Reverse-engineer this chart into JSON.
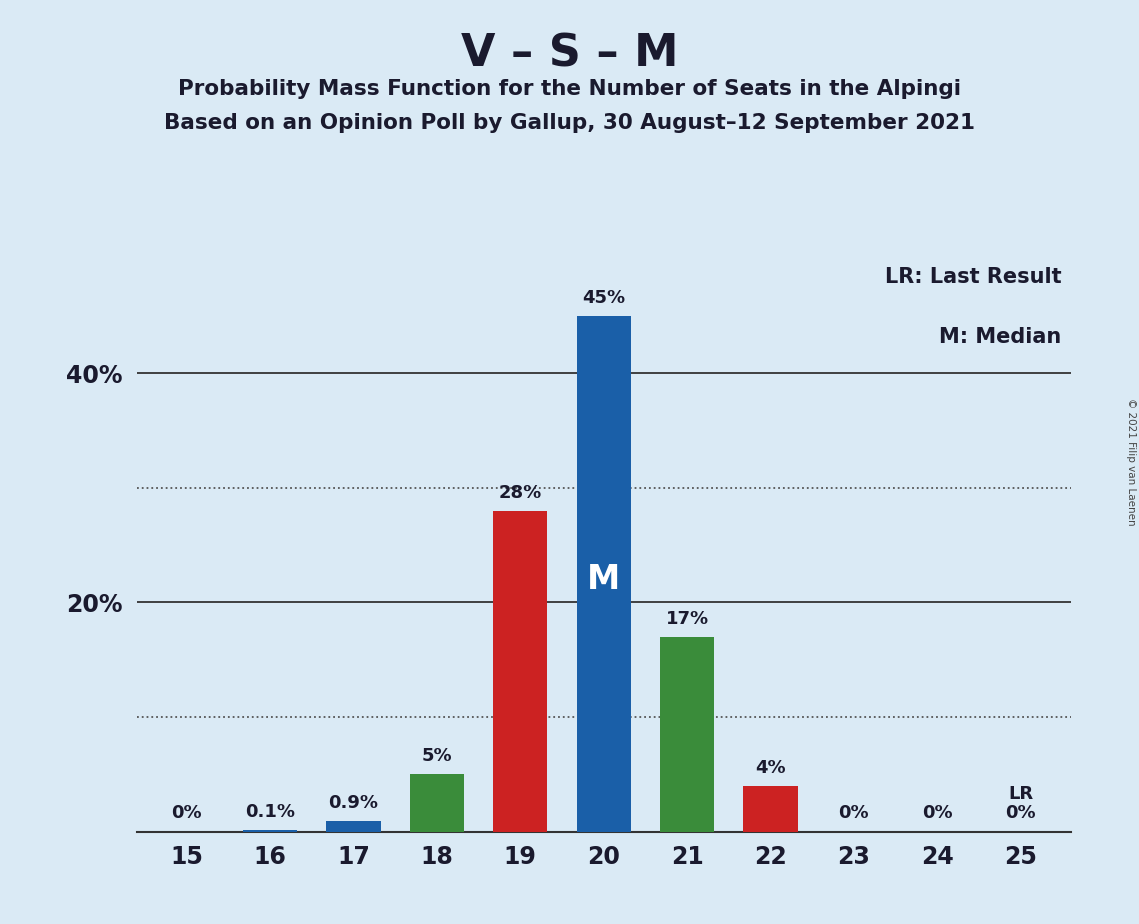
{
  "title": "V – S – M",
  "subtitle1": "Probability Mass Function for the Number of Seats in the Alpingi",
  "subtitle2": "Based on an Opinion Poll by Gallup, 30 August–12 September 2021",
  "copyright": "© 2021 Filip van Laenen",
  "categories": [
    15,
    16,
    17,
    18,
    19,
    20,
    21,
    22,
    23,
    24,
    25
  ],
  "values": [
    0.0,
    0.1,
    0.9,
    5.0,
    28.0,
    45.0,
    17.0,
    4.0,
    0.0,
    0.0,
    0.0
  ],
  "bar_colors": [
    "#1a5fa8",
    "#1a5fa8",
    "#1a5fa8",
    "#3a8c3a",
    "#cc2222",
    "#1a5fa8",
    "#3a8c3a",
    "#cc2222",
    "#1a5fa8",
    "#3a8c3a",
    "#cc2222"
  ],
  "labels": [
    "0%",
    "0.1%",
    "0.9%",
    "5%",
    "28%",
    "45%",
    "17%",
    "4%",
    "0%",
    "0%",
    "0%"
  ],
  "median_bar": 20,
  "lr_bar": 25,
  "legend_lr": "LR: Last Result",
  "legend_m": "M: Median",
  "background_color": "#daeaf5",
  "ylim": [
    0,
    50
  ],
  "ytick_positions": [
    20,
    40
  ],
  "ytick_labels": [
    "20%",
    "40%"
  ],
  "dotted_gridlines": [
    10,
    30
  ],
  "solid_gridlines": [
    20,
    40
  ]
}
